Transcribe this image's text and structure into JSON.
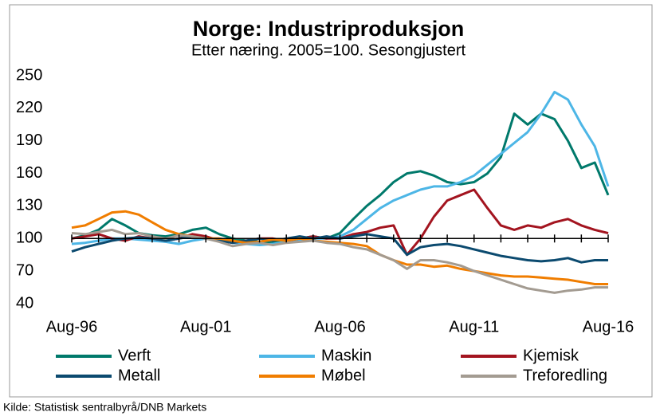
{
  "chart_data": {
    "type": "line",
    "title": "Norge: Industriproduksjon",
    "subtitle": "Etter næring. 2005=100. Sesongjustert",
    "source": "Kilde: Statistisk sentralbyrå/DNB  Markets",
    "categories": [
      "Aug-96",
      null,
      null,
      null,
      null,
      null,
      null,
      null,
      null,
      null,
      "Aug-01",
      null,
      null,
      null,
      null,
      null,
      null,
      null,
      null,
      null,
      "Aug-06",
      null,
      null,
      null,
      null,
      null,
      null,
      null,
      null,
      null,
      "Aug-11",
      null,
      null,
      null,
      null,
      null,
      null,
      null,
      null,
      null,
      "Aug-16"
    ],
    "ylim": [
      40,
      250
    ],
    "yticks": [
      40,
      70,
      100,
      130,
      160,
      190,
      220,
      250
    ],
    "xaxis_crosses": 100,
    "grid": false,
    "legend": "bottom",
    "series": [
      {
        "name": "Verft",
        "color": "#00796b",
        "values": [
          100,
          103,
          108,
          118,
          112,
          105,
          103,
          102,
          104,
          108,
          110,
          104,
          100,
          98,
          97,
          96,
          98,
          100,
          102,
          100,
          105,
          118,
          130,
          140,
          152,
          160,
          162,
          158,
          152,
          150,
          152,
          160,
          175,
          215,
          205,
          215,
          210,
          190,
          165,
          170,
          140
        ]
      },
      {
        "name": "Maskin",
        "color": "#4db6e6",
        "values": [
          95,
          96,
          98,
          100,
          100,
          99,
          98,
          97,
          95,
          98,
          100,
          98,
          96,
          95,
          94,
          95,
          97,
          98,
          100,
          100,
          102,
          108,
          118,
          128,
          135,
          140,
          145,
          148,
          148,
          152,
          158,
          168,
          178,
          188,
          198,
          215,
          235,
          228,
          205,
          185,
          148
        ]
      },
      {
        "name": "Kjemisk",
        "color": "#a3141f",
        "values": [
          100,
          102,
          104,
          100,
          98,
          102,
          100,
          98,
          100,
          104,
          102,
          98,
          96,
          98,
          100,
          100,
          98,
          100,
          102,
          100,
          100,
          104,
          106,
          110,
          112,
          85,
          100,
          120,
          135,
          140,
          145,
          128,
          112,
          108,
          112,
          110,
          115,
          118,
          112,
          108,
          105
        ]
      },
      {
        "name": "Metall",
        "color": "#0b4a6f",
        "values": [
          88,
          92,
          95,
          98,
          100,
          101,
          100,
          98,
          100,
          102,
          100,
          98,
          96,
          98,
          100,
          98,
          100,
          102,
          100,
          102,
          100,
          102,
          104,
          102,
          100,
          85,
          92,
          94,
          95,
          93,
          90,
          87,
          84,
          82,
          80,
          79,
          80,
          82,
          78,
          80,
          80
        ]
      },
      {
        "name": "Møbel",
        "color": "#f07d00",
        "values": [
          110,
          112,
          118,
          124,
          125,
          122,
          115,
          108,
          104,
          102,
          100,
          100,
          98,
          96,
          97,
          99,
          98,
          100,
          98,
          97,
          96,
          95,
          93,
          85,
          80,
          76,
          76,
          74,
          75,
          72,
          70,
          68,
          66,
          65,
          65,
          64,
          63,
          62,
          60,
          58,
          58
        ]
      },
      {
        "name": "Treforedling",
        "color": "#a39b91",
        "values": [
          105,
          104,
          106,
          108,
          104,
          105,
          102,
          100,
          103,
          102,
          100,
          97,
          93,
          95,
          96,
          94,
          96,
          97,
          98,
          96,
          95,
          92,
          90,
          85,
          80,
          72,
          80,
          80,
          78,
          75,
          70,
          66,
          62,
          58,
          54,
          52,
          50,
          52,
          53,
          55,
          55
        ]
      }
    ]
  }
}
